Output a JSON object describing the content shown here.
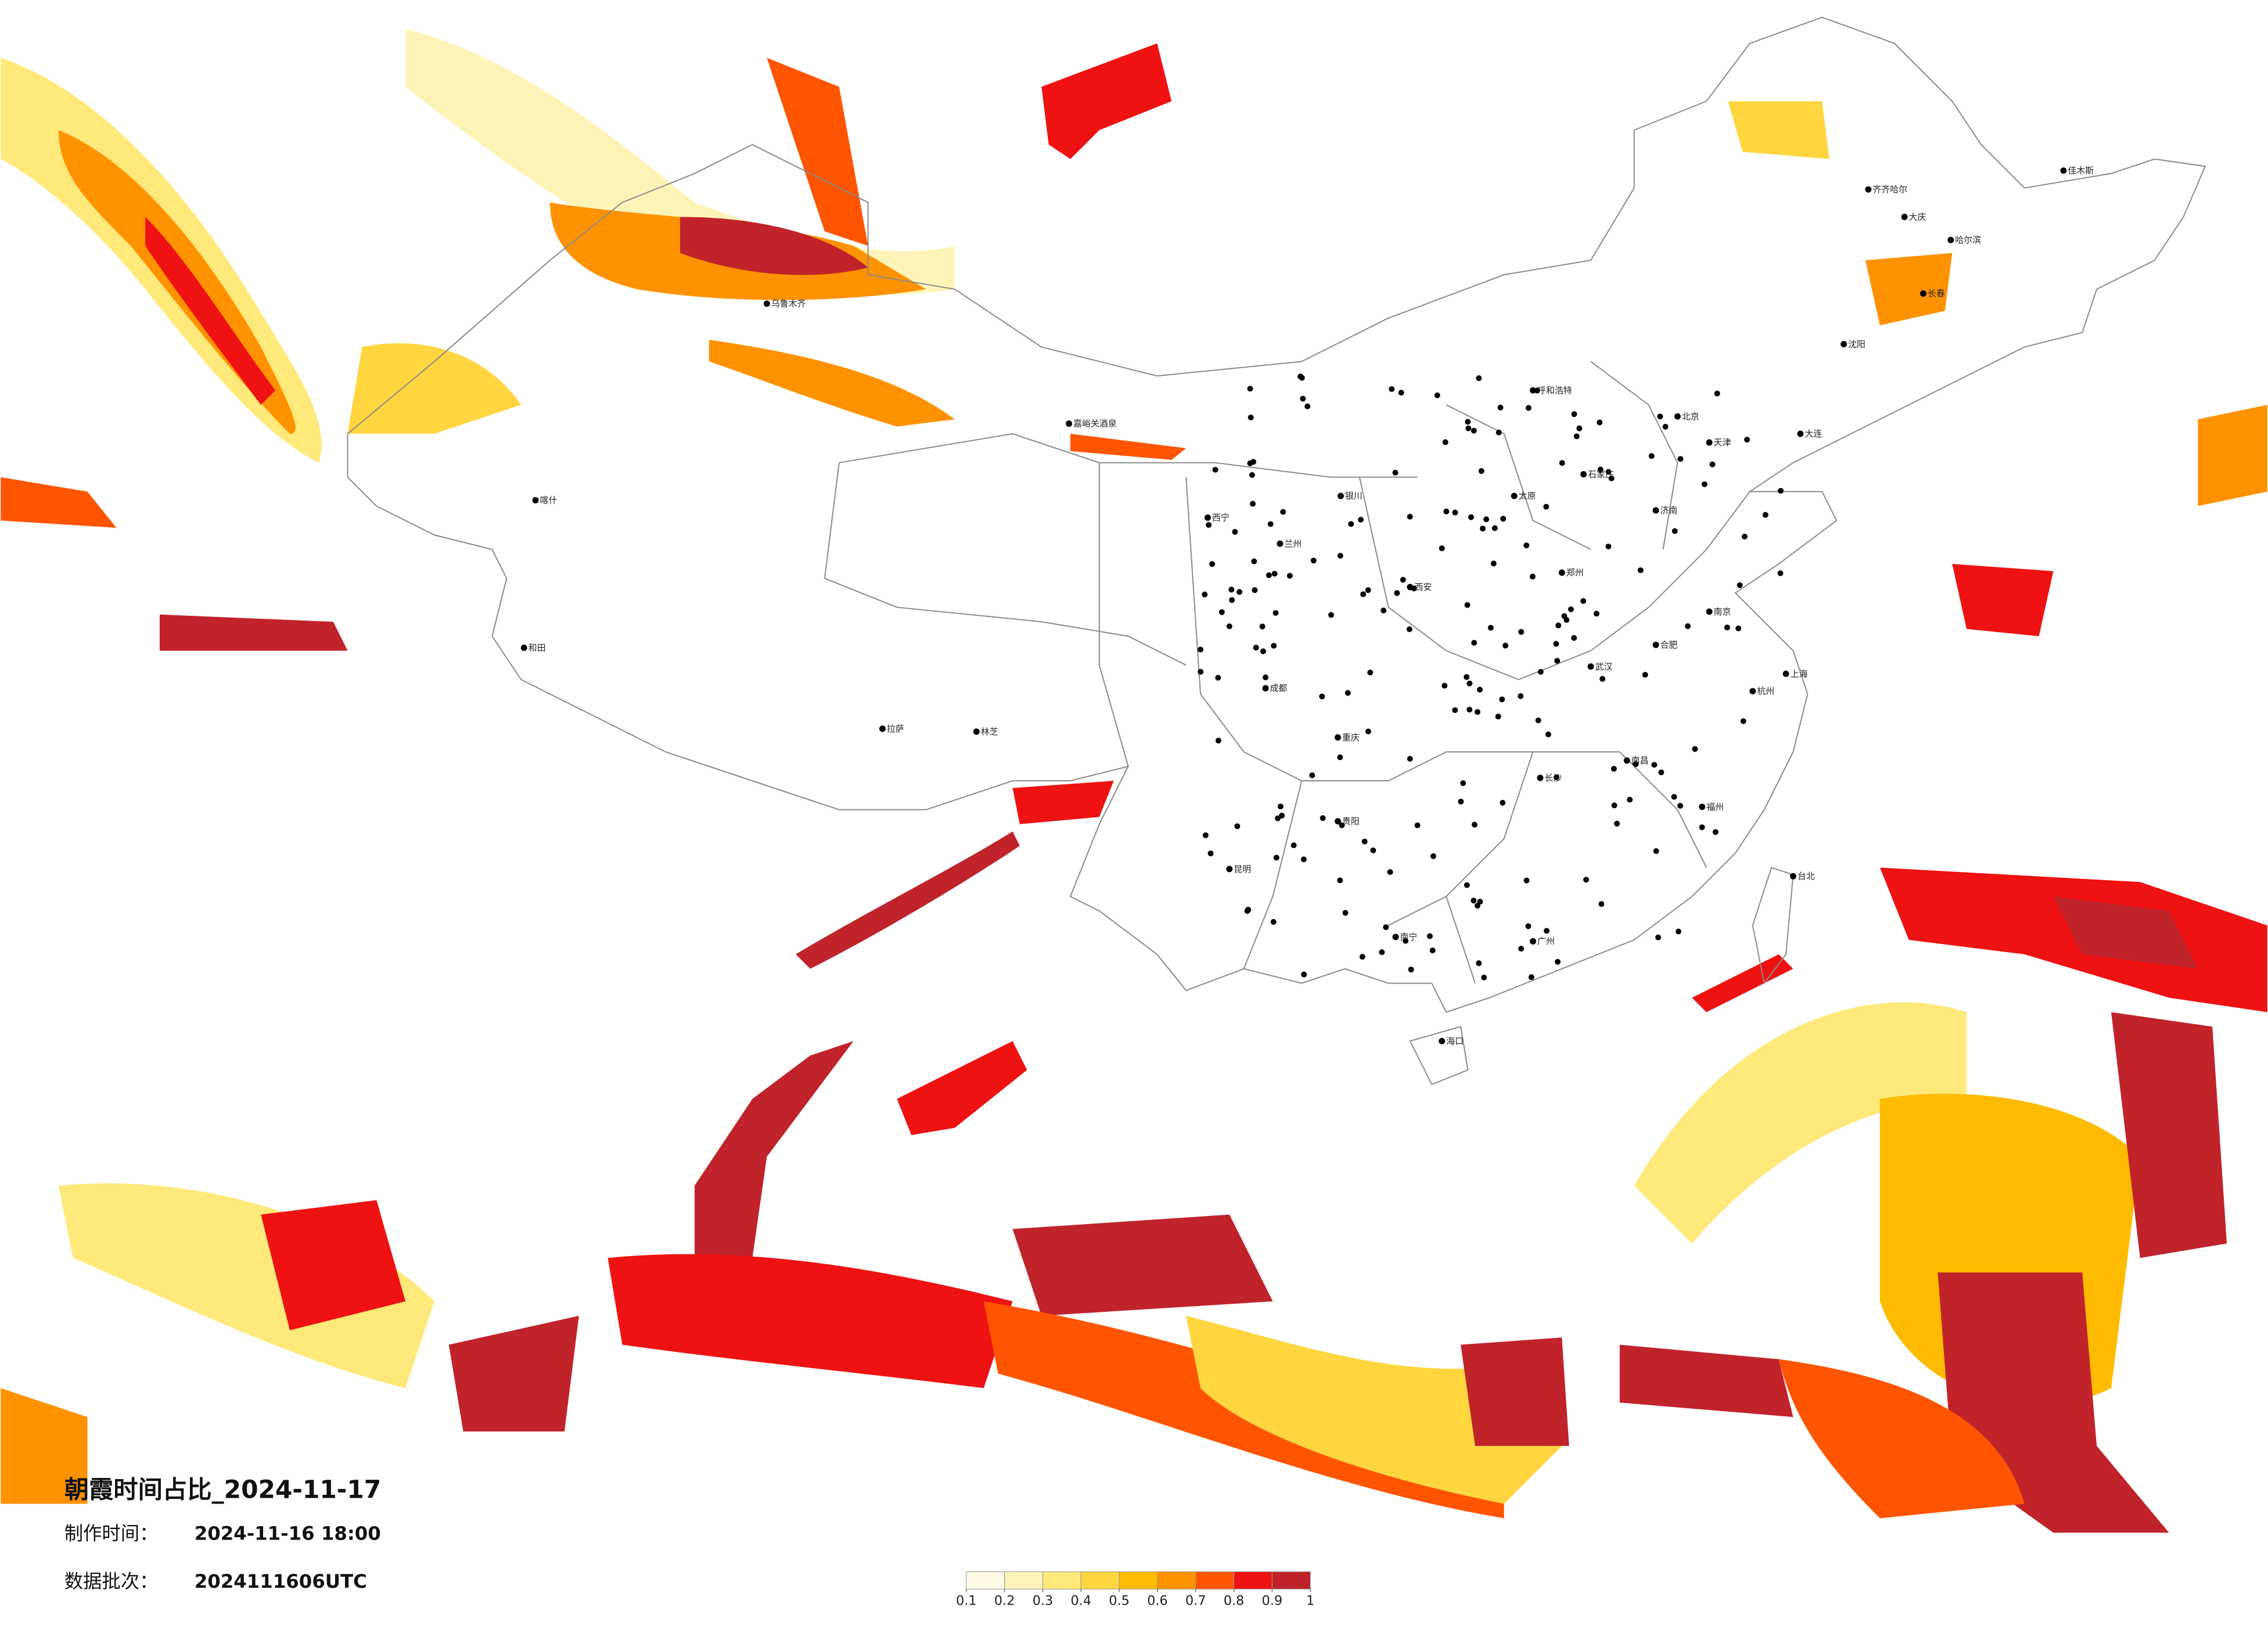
{
  "title": "朝霞时间占比_2024-11-17",
  "made": {
    "label": "制作时间：",
    "value": "2024-11-16 18:00"
  },
  "batch": {
    "label": "数据批次：",
    "value": "2024111606UTC"
  },
  "legend": {
    "ticks": [
      0.1,
      0.2,
      0.3,
      0.4,
      0.5,
      0.6,
      0.7,
      0.8,
      0.9,
      1
    ],
    "colors": [
      "#fffbe6",
      "#fff4b8",
      "#ffe97a",
      "#ffd640",
      "#ffbb00",
      "#ff9200",
      "#ff5500",
      "#ee1212",
      "#c1232b"
    ]
  },
  "cities": [
    "北京",
    "天津",
    "上海",
    "广州",
    "重庆",
    "成都",
    "武汉",
    "西安",
    "兰州",
    "乌鲁木齐",
    "拉萨",
    "林芝",
    "哈尔滨",
    "长春",
    "沈阳",
    "呼和浩特",
    "昆明",
    "贵阳",
    "南宁",
    "海口",
    "台北",
    "喀什",
    "和田",
    "嘉峪关酒泉",
    "西宁",
    "银川",
    "济南",
    "郑州",
    "南京",
    "杭州",
    "福州",
    "长沙",
    "南昌",
    "合肥",
    "石家庄",
    "太原",
    "大连",
    "齐齐哈尔",
    "大庆",
    "佳木斯"
  ]
}
